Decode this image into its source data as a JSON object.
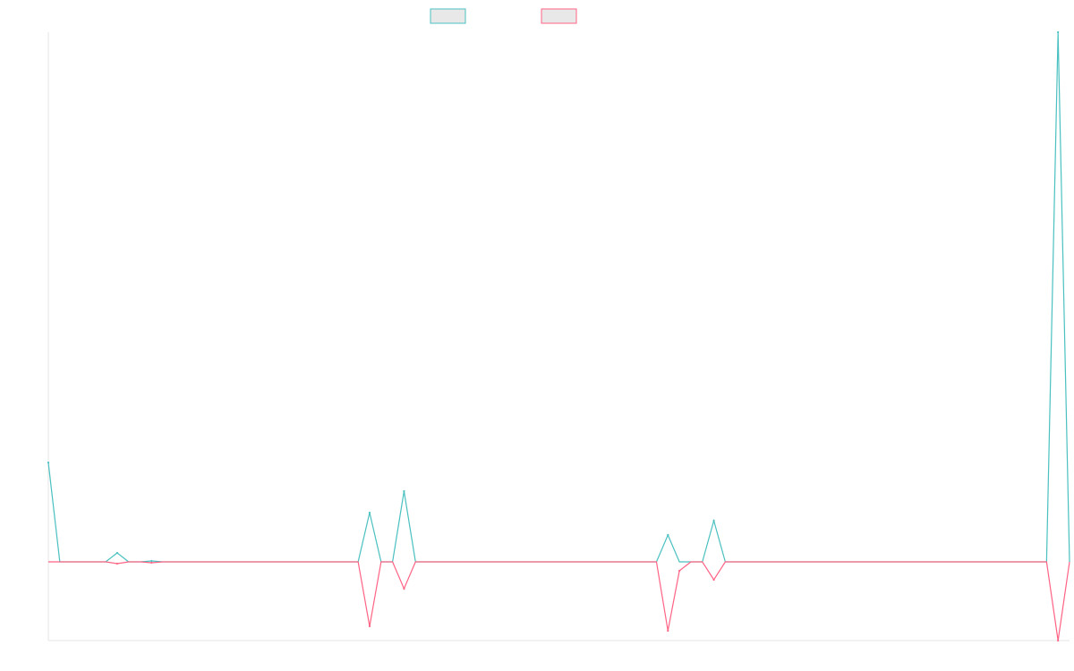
{
  "chart_data": {
    "type": "line",
    "title": "",
    "xlabel": "",
    "ylabel": "",
    "grid": false,
    "legend_position": "top-center",
    "x": [
      0,
      1,
      2,
      3,
      4,
      5,
      6,
      7,
      8,
      9,
      10,
      11,
      12,
      13,
      14,
      15,
      16,
      17,
      18,
      19,
      20,
      21,
      22,
      23,
      24,
      25,
      26,
      27,
      28,
      29,
      30,
      31,
      32,
      33,
      34,
      35,
      36,
      37,
      38,
      39,
      40,
      41,
      42,
      43,
      44,
      45,
      46,
      47,
      48,
      49,
      50,
      51,
      52,
      53,
      54,
      55,
      56,
      57,
      58,
      59,
      60,
      61,
      62,
      63,
      64,
      65,
      66,
      67,
      68,
      69,
      70,
      71,
      72,
      73,
      74,
      75,
      76,
      77,
      78,
      79,
      80,
      81,
      82,
      83,
      84,
      85,
      86,
      87,
      88,
      89
    ],
    "ylim": [
      -88,
      592
    ],
    "series": [
      {
        "color": "#4bc0c0",
        "fill": "#e8e8e8",
        "values": [
          111,
          0,
          0,
          0,
          0,
          0,
          10,
          0,
          0,
          1,
          0,
          0,
          0,
          0,
          0,
          0,
          0,
          0,
          0,
          0,
          0,
          0,
          0,
          0,
          0,
          0,
          0,
          0,
          55,
          0,
          0,
          79,
          0,
          0,
          0,
          0,
          0,
          0,
          0,
          0,
          0,
          0,
          0,
          0,
          0,
          0,
          0,
          0,
          0,
          0,
          0,
          0,
          0,
          0,
          30,
          0,
          0,
          0,
          46,
          0,
          0,
          0,
          0,
          0,
          0,
          0,
          0,
          0,
          0,
          0,
          0,
          0,
          0,
          0,
          0,
          0,
          0,
          0,
          0,
          0,
          0,
          0,
          0,
          0,
          0,
          0,
          0,
          0,
          592,
          0
        ]
      },
      {
        "color": "#ff6384",
        "fill": "#e8e8e8",
        "values": [
          0,
          0,
          0,
          0,
          0,
          0,
          -2,
          0,
          0,
          -1,
          0,
          0,
          0,
          0,
          0,
          0,
          0,
          0,
          0,
          0,
          0,
          0,
          0,
          0,
          0,
          0,
          0,
          0,
          -72,
          0,
          0,
          -30,
          0,
          0,
          0,
          0,
          0,
          0,
          0,
          0,
          0,
          0,
          0,
          0,
          0,
          0,
          0,
          0,
          0,
          0,
          0,
          0,
          0,
          0,
          -77,
          -10,
          0,
          0,
          -20,
          0,
          0,
          0,
          0,
          0,
          0,
          0,
          0,
          0,
          0,
          0,
          0,
          0,
          0,
          0,
          0,
          0,
          0,
          0,
          0,
          0,
          0,
          0,
          0,
          0,
          0,
          0,
          0,
          0,
          -88,
          0
        ]
      }
    ]
  }
}
